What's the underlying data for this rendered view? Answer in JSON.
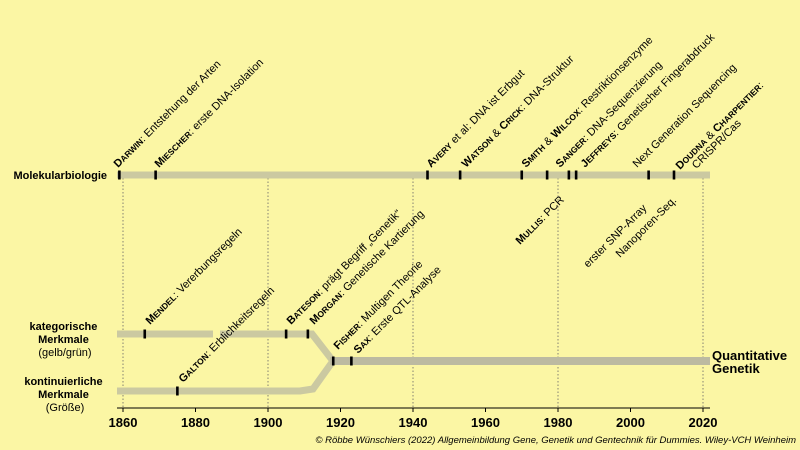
{
  "rows": {
    "molecular": "Molekularbiologie",
    "categorical": [
      "kategorische",
      "Merkmale",
      "(gelb/grün)"
    ],
    "continuous": [
      "kontinuierliche",
      "Merkmale",
      "(Größe)"
    ]
  },
  "quantitative": [
    "Quantitative",
    "Genetik"
  ],
  "axis": {
    "ticks": [
      "1860",
      "1880",
      "1900",
      "1920",
      "1940",
      "1960",
      "1980",
      "2000",
      "2020"
    ]
  },
  "events": [
    {
      "id": "darwin",
      "year": 1859,
      "name": "Darwin",
      "sep": ": ",
      "text": "Entstehung der Arten"
    },
    {
      "id": "miescher",
      "year": 1869,
      "name": "Miescher",
      "sep": ": ",
      "text": "erste DNA-Isolation"
    },
    {
      "id": "avery",
      "year": 1944,
      "name": "Avery",
      "sep": " ",
      "text": "et al: DNA ist Erbgut"
    },
    {
      "id": "watson",
      "year": 1953,
      "name": "Watson",
      "join": " & ",
      "name2": "Crick",
      "sep": ": ",
      "text": "DNA-Struktur"
    },
    {
      "id": "smith",
      "year": 1970,
      "name": "Smith",
      "join": " & ",
      "name2": "Wilcox",
      "sep": ": ",
      "text": "Restriktionsenzyme"
    },
    {
      "id": "sanger",
      "year": 1977,
      "name": "Sanger",
      "sep": ": ",
      "text": "DNA-Sequenzierung"
    },
    {
      "id": "jeffreys",
      "year": 1985,
      "name": "Jeffreys",
      "sep": ": ",
      "text": "Genetischer Fingerabdruck"
    },
    {
      "id": "ngs",
      "year": 2005,
      "text": "Next Generation Sequencing"
    },
    {
      "id": "doudna",
      "year": 2012,
      "name": "Doudna",
      "join": " & ",
      "name2": "Charpentier",
      "sep": ":",
      "text2": "CRISPR/Cas"
    },
    {
      "id": "mullis",
      "year": 1983,
      "name": "Mullis",
      "sep": ": ",
      "text": "PCR"
    },
    {
      "id": "snp",
      "year": 1995,
      "text": "erster SNP-Array"
    },
    {
      "id": "nanopore",
      "year": 2014,
      "text": "Nanoporen-Seq."
    },
    {
      "id": "mendel",
      "year": 1866,
      "name": "Mendel",
      "sep": ": ",
      "text": "Vererbungsregeln"
    },
    {
      "id": "bateson",
      "year": 1905,
      "name": "Bateson",
      "sep": ": ",
      "text": "prägt Begriff „Genetik“"
    },
    {
      "id": "morgan",
      "year": 1911,
      "name": "Morgan",
      "sep": ": ",
      "text": "Genetische Kartierung"
    },
    {
      "id": "galton",
      "year": 1875,
      "name": "Galton",
      "sep": ": ",
      "text": "Erblichkeitsregeln"
    },
    {
      "id": "fisher",
      "year": 1918,
      "name": "Fisher",
      "sep": ": ",
      "text": "Multigen Theorie"
    },
    {
      "id": "sax",
      "year": 1923,
      "name": "Sax",
      "sep": ": ",
      "text": "Erste QTL-Analyse"
    }
  ],
  "credit": "© Röbbe Wünschiers (2022) Allgemeinbildung Gene, Genetik und Gentechnik für Dummies. Wiley-VCH Weinheim",
  "colors": {
    "background": "#fbf6a4",
    "line": "#cbc9a1",
    "marker": "#000000"
  }
}
